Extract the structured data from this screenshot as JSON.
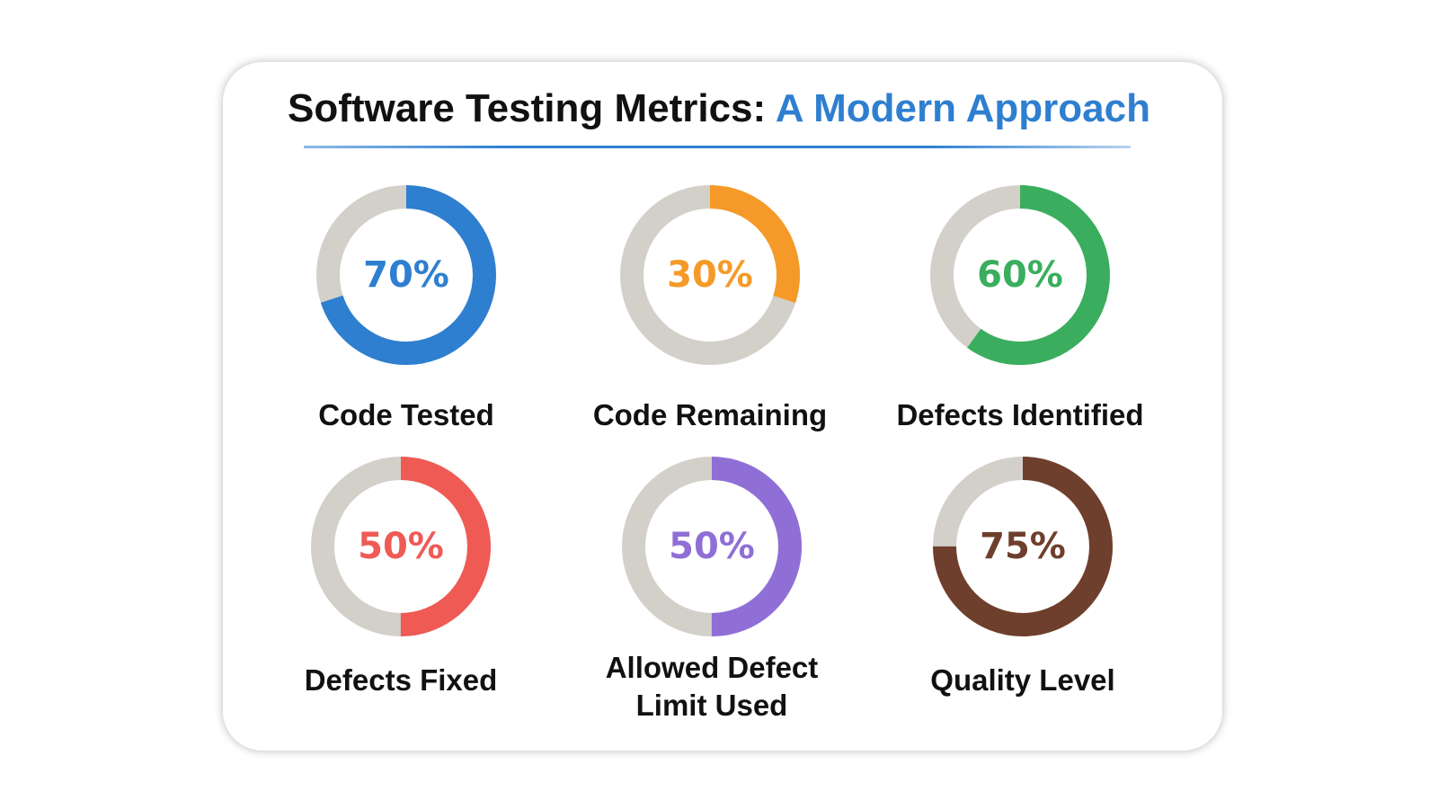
{
  "title": {
    "main": "Software Testing Metrics:",
    "accent": "A Modern Approach"
  },
  "colors": {
    "track": "#d3d0ca",
    "accent": "#2e7fd0"
  },
  "chart_data": {
    "type": "pie",
    "variant": "donut",
    "items": [
      {
        "label": "Code Tested",
        "value": 70,
        "value_label": "70%",
        "color": "#2e7fd0"
      },
      {
        "label": "Code Remaining",
        "value": 30,
        "value_label": "30%",
        "color": "#f59a28"
      },
      {
        "label": "Defects Identified",
        "value": 60,
        "value_label": "60%",
        "color": "#3aae5e"
      },
      {
        "label": "Defects Fixed",
        "value": 50,
        "value_label": "50%",
        "color": "#ef5a55"
      },
      {
        "label": "Allowed Defect\nLimit Used",
        "value": 50,
        "value_label": "50%",
        "color": "#8f6fd6"
      },
      {
        "label": "Quality Level",
        "value": 75,
        "value_label": "75%",
        "color": "#6e3f2c"
      }
    ]
  }
}
